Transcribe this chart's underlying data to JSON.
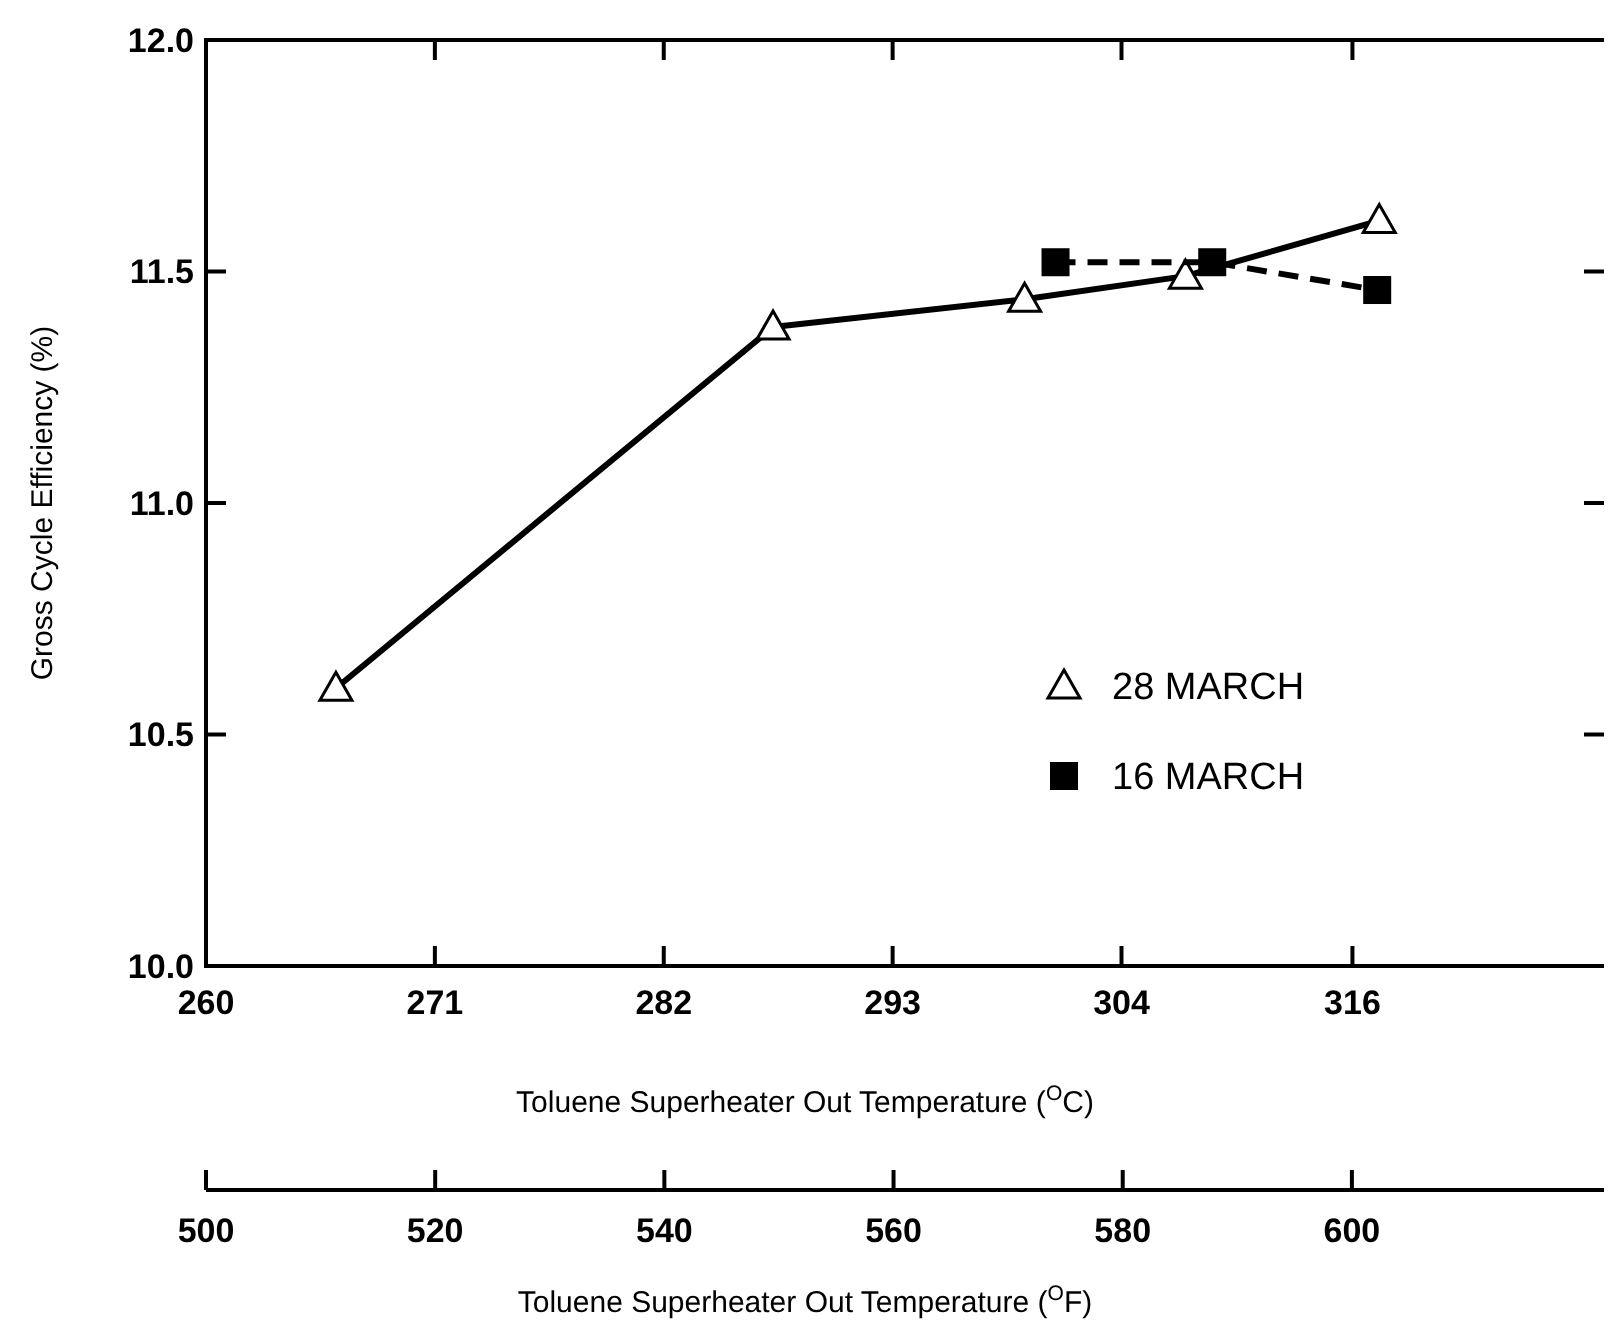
{
  "chart_data": {
    "type": "line",
    "xlabel": "Toluene Superheater Out Temperature ($^{O}$C)",
    "ylabel": "Gross Cycle Efficiency (%)",
    "x2label": "Toluene Superheater Out Temperature ($^{O}$F)",
    "xlim": [
      260,
      327.8
    ],
    "xticks": [
      260,
      {
        "value": 271.1,
        "label": "271"
      },
      {
        "value": 282.2,
        "label": "282"
      },
      {
        "value": 293.3,
        "label": "293"
      },
      {
        "value": 304.4,
        "label": "304"
      },
      {
        "value": 315.6,
        "label": "316"
      }
    ],
    "x2lim": [
      500,
      622
    ],
    "x2ticks": [
      500,
      520,
      540,
      560,
      580,
      600
    ],
    "ylim": [
      10.0,
      12.0
    ],
    "yticks": [
      {
        "value": 10,
        "label": "10.0"
      },
      10.5,
      {
        "value": 11,
        "label": "11.0"
      },
      11.5,
      {
        "value": 12,
        "label": "12.0"
      }
    ],
    "grid": false,
    "legend": "bottom right",
    "series": [
      {
        "name": "28 MARCH",
        "color": "#000000",
        "marker": "triangle",
        "line_style": "solid",
        "x": [
          266.3,
          287.5,
          299.7,
          307.5,
          316.9
        ],
        "values": [
          10.6,
          11.38,
          11.44,
          11.49,
          11.61
        ]
      },
      {
        "name": "16 MARCH",
        "color": "#000000",
        "marker": "square",
        "line_style": "dashed",
        "x": [
          301.2,
          308.8,
          316.8
        ],
        "values": [
          11.52,
          11.52,
          11.46
        ]
      }
    ]
  }
}
